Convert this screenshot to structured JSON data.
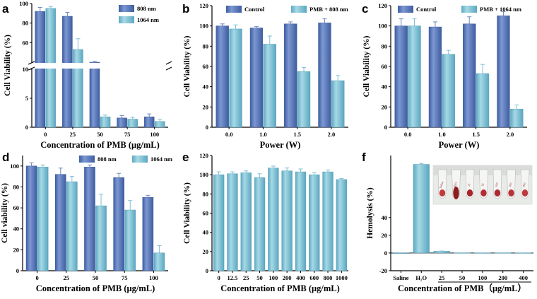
{
  "colors": {
    "dark_bar": "#4f6fb0",
    "dark_bar_light": "#8aa2d8",
    "light_bar": "#6fb6cc",
    "light_bar_light": "#a9dbe8",
    "error": "#7a93c4"
  },
  "chart_data": [
    {
      "id": "a",
      "letter": "a",
      "type": "bar",
      "broken_axis": true,
      "categories": [
        "0",
        "25",
        "50",
        "75",
        "100"
      ],
      "series": [
        {
          "name": "808 nm",
          "values": [
            92,
            87,
            40,
            1.6,
            1.8
          ],
          "errors": [
            4,
            4,
            1,
            0.4,
            0.5
          ]
        },
        {
          "name": "1064 nm",
          "values": [
            95,
            53,
            1.8,
            1.4,
            1.0
          ],
          "errors": [
            2,
            11,
            0.3,
            0.3,
            0.4
          ]
        }
      ],
      "xlabel": "Concentration of PMB (μg/mL)",
      "ylabel": "Cell Viability (%)",
      "ylim_upper": [
        40,
        100
      ],
      "ylim_lower": [
        0,
        10
      ],
      "yticks_upper": [
        "60",
        "80",
        "100"
      ],
      "yticks_lower": [
        "0",
        "5",
        "10"
      ],
      "legend_position": "top-right"
    },
    {
      "id": "b",
      "letter": "b",
      "type": "bar",
      "categories": [
        "0.0",
        "1.0",
        "1.5",
        "2.0"
      ],
      "series": [
        {
          "name": "Control",
          "values": [
            100,
            98,
            102,
            103
          ],
          "errors": [
            2,
            1.5,
            2,
            4
          ]
        },
        {
          "name": "PMB + 808 nm",
          "values": [
            97,
            82,
            55,
            46
          ],
          "errors": [
            4,
            8,
            4,
            5
          ]
        }
      ],
      "xlabel": "Power (W)",
      "ylabel": "Cell Viability (%)",
      "ylim": [
        0,
        120
      ],
      "yticks": [
        "0",
        "20",
        "40",
        "60",
        "80",
        "100",
        "120"
      ],
      "legend_position": "top"
    },
    {
      "id": "c",
      "letter": "c",
      "type": "bar",
      "categories": [
        "0.0",
        "1.0",
        "1.5",
        "2.0"
      ],
      "series": [
        {
          "name": "Control",
          "values": [
            100,
            99,
            102,
            110
          ],
          "errors": [
            7,
            5,
            7,
            4
          ]
        },
        {
          "name": "PMB + 1064 nm",
          "values": [
            100,
            72,
            53,
            18
          ],
          "errors": [
            7,
            4,
            9,
            4
          ]
        }
      ],
      "xlabel": "Power (W)",
      "ylabel": "Cell Viability (%)",
      "ylim": [
        0,
        120
      ],
      "yticks": [
        "0",
        "20",
        "40",
        "60",
        "80",
        "100",
        "120"
      ],
      "legend_position": "top"
    },
    {
      "id": "d",
      "letter": "d",
      "type": "bar",
      "categories": [
        "0",
        "25",
        "50",
        "75",
        "100"
      ],
      "series": [
        {
          "name": "808 nm",
          "values": [
            100,
            92,
            99,
            89,
            70
          ],
          "errors": [
            3,
            6,
            2,
            4,
            2
          ]
        },
        {
          "name": "1064 nm",
          "values": [
            99,
            85,
            62,
            58,
            17
          ],
          "errors": [
            2,
            5,
            11,
            9,
            7
          ]
        }
      ],
      "xlabel": "Concentration of PMB (μg/mL)",
      "ylabel": "Cell viability (%)",
      "ylim": [
        0,
        110
      ],
      "yticks": [
        "0",
        "20",
        "40",
        "60",
        "80",
        "100"
      ],
      "legend_position": "top-right"
    },
    {
      "id": "e",
      "letter": "e",
      "type": "bar",
      "categories": [
        "0",
        "12.5",
        "25",
        "50",
        "100",
        "200",
        "400",
        "600",
        "800",
        "1000"
      ],
      "series": [
        {
          "name": "PMB",
          "values": [
            100,
            101,
            102,
            97,
            107,
            104,
            103,
            100,
            103,
            95
          ],
          "errors": [
            3,
            2,
            2,
            4,
            2,
            3,
            3,
            2,
            2,
            1
          ]
        }
      ],
      "xlabel": "Concentration of PMB (μg/mL)",
      "ylabel": "Cell Viability (%)",
      "ylim": [
        0,
        120
      ],
      "yticks": [
        "0",
        "20",
        "40",
        "60",
        "80",
        "100",
        "120"
      ]
    },
    {
      "id": "f",
      "letter": "f",
      "type": "bar",
      "categories": [
        "Saline",
        "H₂O",
        "25",
        "50",
        "100",
        "200",
        "400"
      ],
      "series": [
        {
          "name": "Hemolysis",
          "values": [
            0,
            100,
            2,
            0.3,
            0.2,
            0.3,
            0.2
          ],
          "errors": [
            0,
            1,
            0.3,
            0,
            0,
            0,
            0
          ]
        }
      ],
      "xlabel": "Concentration of PMB（μg/mL）",
      "ylabel": "Hemolysis (%)",
      "ylim": [
        -20,
        110
      ],
      "yticks": [
        "-20",
        "0",
        "20",
        "40"
      ],
      "inset": "photo of hemolysis test tubes",
      "tube_labels": [
        "Saline",
        "H2O",
        "25",
        "50",
        "100",
        "200",
        "400"
      ]
    }
  ]
}
